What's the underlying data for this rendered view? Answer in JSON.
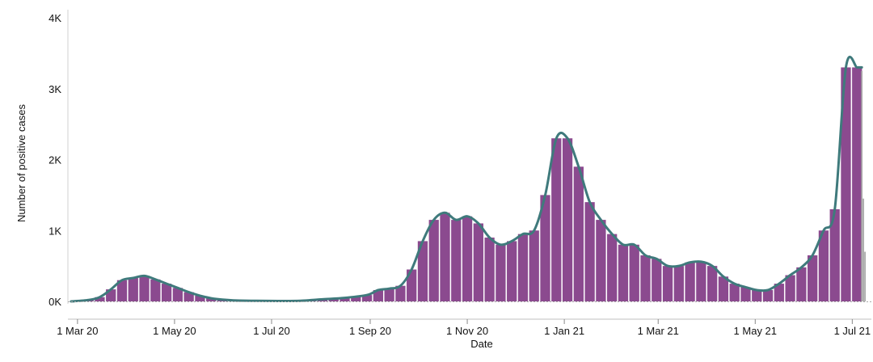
{
  "chart_data": {
    "type": "bar",
    "xlabel": "Date",
    "ylabel": "Number of positive cases",
    "ylim": [
      0,
      4000
    ],
    "grid": false,
    "xlim": [
      "2020-02-26",
      "2021-07-12"
    ],
    "y_ticks": [
      {
        "value": 0,
        "label": "0K"
      },
      {
        "value": 1000,
        "label": "1K"
      },
      {
        "value": 2000,
        "label": "2K"
      },
      {
        "value": 3000,
        "label": "3K"
      },
      {
        "value": 4000,
        "label": "4K"
      }
    ],
    "x_ticks": [
      {
        "date": "2020-03-01",
        "label": "1 Mar 20"
      },
      {
        "date": "2020-05-01",
        "label": "1 May 20"
      },
      {
        "date": "2020-07-01",
        "label": "1 Jul 20"
      },
      {
        "date": "2020-09-01",
        "label": "1 Sep 20"
      },
      {
        "date": "2020-11-01",
        "label": "1 Nov 20"
      },
      {
        "date": "2021-01-01",
        "label": "1 Jan 21"
      },
      {
        "date": "2021-03-01",
        "label": "1 Mar 21"
      },
      {
        "date": "2021-05-01",
        "label": "1 May 21"
      },
      {
        "date": "2021-07-01",
        "label": "1 Jul 21"
      }
    ],
    "series": [
      {
        "kind": "bar",
        "color": "#8b4a8f",
        "x": [
          "2020-03-08",
          "2020-03-15",
          "2020-03-22",
          "2020-03-29",
          "2020-04-05",
          "2020-04-12",
          "2020-04-19",
          "2020-04-26",
          "2020-05-03",
          "2020-05-10",
          "2020-05-17",
          "2020-05-24",
          "2020-05-31",
          "2020-06-07",
          "2020-06-14",
          "2020-06-21",
          "2020-06-28",
          "2020-07-05",
          "2020-07-12",
          "2020-07-19",
          "2020-07-26",
          "2020-08-02",
          "2020-08-09",
          "2020-08-16",
          "2020-08-23",
          "2020-08-30",
          "2020-09-06",
          "2020-09-13",
          "2020-09-20",
          "2020-09-27",
          "2020-10-04",
          "2020-10-11",
          "2020-10-18",
          "2020-10-25",
          "2020-11-01",
          "2020-11-08",
          "2020-11-15",
          "2020-11-22",
          "2020-11-29",
          "2020-12-06",
          "2020-12-13",
          "2020-12-20",
          "2020-12-27",
          "2021-01-03",
          "2021-01-10",
          "2021-01-17",
          "2021-01-24",
          "2021-01-31",
          "2021-02-07",
          "2021-02-14",
          "2021-02-21",
          "2021-02-28",
          "2021-03-07",
          "2021-03-14",
          "2021-03-21",
          "2021-03-28",
          "2021-04-04",
          "2021-04-11",
          "2021-04-18",
          "2021-04-25",
          "2021-05-02",
          "2021-05-09",
          "2021-05-16",
          "2021-05-23",
          "2021-05-30",
          "2021-06-06",
          "2021-06-13",
          "2021-06-20",
          "2021-06-27",
          "2021-07-04"
        ],
        "values": [
          20,
          60,
          170,
          300,
          330,
          360,
          310,
          250,
          190,
          130,
          80,
          45,
          25,
          15,
          10,
          8,
          7,
          6,
          6,
          8,
          15,
          30,
          40,
          50,
          70,
          90,
          160,
          180,
          220,
          450,
          850,
          1150,
          1250,
          1150,
          1200,
          1100,
          900,
          800,
          850,
          950,
          1000,
          1500,
          2300,
          2300,
          1900,
          1400,
          1150,
          950,
          800,
          800,
          650,
          600,
          500,
          500,
          550,
          560,
          500,
          350,
          250,
          200,
          160,
          160,
          250,
          370,
          480,
          650,
          1000,
          1300,
          3300,
          3300
        ]
      },
      {
        "kind": "bar",
        "color": "#a8a8a8",
        "x": [
          "2021-07-07",
          "2021-07-08",
          "2021-07-09"
        ],
        "values": [
          3250,
          1450,
          700
        ]
      },
      {
        "kind": "line",
        "color": "#3f7a7c",
        "x": [
          "2020-02-26",
          "2020-03-08",
          "2020-03-15",
          "2020-03-22",
          "2020-03-29",
          "2020-04-05",
          "2020-04-12",
          "2020-04-19",
          "2020-04-26",
          "2020-05-03",
          "2020-05-10",
          "2020-05-17",
          "2020-05-24",
          "2020-05-31",
          "2020-06-07",
          "2020-06-21",
          "2020-07-05",
          "2020-07-19",
          "2020-08-02",
          "2020-08-16",
          "2020-08-30",
          "2020-09-06",
          "2020-09-13",
          "2020-09-20",
          "2020-09-27",
          "2020-10-04",
          "2020-10-11",
          "2020-10-18",
          "2020-10-25",
          "2020-11-01",
          "2020-11-08",
          "2020-11-15",
          "2020-11-22",
          "2020-11-29",
          "2020-12-06",
          "2020-12-13",
          "2020-12-20",
          "2020-12-27",
          "2021-01-03",
          "2021-01-10",
          "2021-01-17",
          "2021-01-24",
          "2021-01-31",
          "2021-02-07",
          "2021-02-14",
          "2021-02-21",
          "2021-02-28",
          "2021-03-07",
          "2021-03-14",
          "2021-03-21",
          "2021-03-28",
          "2021-04-04",
          "2021-04-11",
          "2021-04-18",
          "2021-04-25",
          "2021-05-02",
          "2021-05-09",
          "2021-05-16",
          "2021-05-23",
          "2021-05-30",
          "2021-06-06",
          "2021-06-13",
          "2021-06-20",
          "2021-06-27",
          "2021-07-04",
          "2021-07-07"
        ],
        "values": [
          0,
          20,
          60,
          170,
          300,
          330,
          360,
          310,
          250,
          190,
          130,
          80,
          45,
          25,
          15,
          8,
          6,
          8,
          30,
          50,
          90,
          160,
          180,
          220,
          450,
          850,
          1150,
          1250,
          1150,
          1200,
          1100,
          900,
          800,
          850,
          950,
          1000,
          1500,
          2300,
          2300,
          1900,
          1400,
          1150,
          950,
          800,
          800,
          650,
          600,
          500,
          500,
          550,
          560,
          500,
          350,
          250,
          200,
          160,
          160,
          250,
          370,
          480,
          650,
          1000,
          1300,
          3300,
          3300,
          3300
        ]
      }
    ]
  }
}
